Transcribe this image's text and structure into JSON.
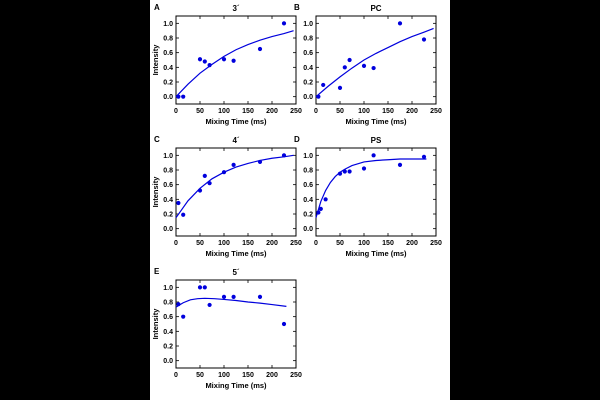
{
  "colors": {
    "series": "#0000dd",
    "axis": "#000000",
    "page_background": "#000000",
    "figure_background": "#ffffff"
  },
  "chart_data": [
    {
      "type": "scatter",
      "panel": "A",
      "title": "3´",
      "xlabel": "Mixing Time (ms)",
      "ylabel": "Intensity",
      "xlim": [
        0,
        250
      ],
      "ylim": [
        -0.1,
        1.1
      ],
      "xticks": [
        0,
        50,
        100,
        150,
        200,
        250
      ],
      "yticks": [
        0.0,
        0.2,
        0.4,
        0.6,
        0.8,
        1.0
      ],
      "points": {
        "x": [
          5,
          15,
          50,
          60,
          70,
          100,
          120,
          175,
          225
        ],
        "y": [
          0.0,
          0.0,
          0.51,
          0.48,
          0.43,
          0.51,
          0.49,
          0.65,
          1.0
        ]
      },
      "fit": {
        "x": [
          0,
          25,
          50,
          75,
          100,
          125,
          150,
          175,
          200,
          225,
          245
        ],
        "y": [
          0.0,
          0.17,
          0.32,
          0.44,
          0.55,
          0.64,
          0.71,
          0.77,
          0.82,
          0.86,
          0.9
        ]
      },
      "grid": false
    },
    {
      "type": "scatter",
      "panel": "B",
      "title": "PC",
      "xlabel": "Mixing Time (ms)",
      "ylabel": "",
      "xlim": [
        0,
        250
      ],
      "ylim": [
        -0.1,
        1.1
      ],
      "xticks": [
        0,
        50,
        100,
        150,
        200,
        250
      ],
      "yticks": [
        0.0,
        0.2,
        0.4,
        0.6,
        0.8,
        1.0
      ],
      "points": {
        "x": [
          5,
          15,
          50,
          60,
          70,
          100,
          120,
          175,
          225
        ],
        "y": [
          0.0,
          0.16,
          0.12,
          0.4,
          0.5,
          0.42,
          0.39,
          1.0,
          0.78
        ]
      },
      "fit": {
        "x": [
          0,
          25,
          50,
          75,
          100,
          125,
          150,
          175,
          200,
          225,
          245
        ],
        "y": [
          0.0,
          0.14,
          0.27,
          0.39,
          0.5,
          0.59,
          0.67,
          0.75,
          0.82,
          0.88,
          0.93
        ]
      },
      "grid": false
    },
    {
      "type": "scatter",
      "panel": "C",
      "title": "4´",
      "xlabel": "Mixing Time (ms)",
      "ylabel": "Intensity",
      "xlim": [
        0,
        250
      ],
      "ylim": [
        -0.1,
        1.1
      ],
      "xticks": [
        0,
        50,
        100,
        150,
        200,
        250
      ],
      "yticks": [
        0.0,
        0.2,
        0.4,
        0.6,
        0.8,
        1.0
      ],
      "points": {
        "x": [
          5,
          15,
          50,
          60,
          70,
          100,
          120,
          175,
          225
        ],
        "y": [
          0.35,
          0.19,
          0.52,
          0.72,
          0.62,
          0.77,
          0.87,
          0.91,
          1.0
        ]
      },
      "fit": {
        "x": [
          0,
          25,
          50,
          75,
          100,
          125,
          150,
          175,
          200,
          225,
          245
        ],
        "y": [
          0.15,
          0.38,
          0.55,
          0.68,
          0.77,
          0.84,
          0.89,
          0.93,
          0.96,
          0.98,
          1.0
        ]
      },
      "grid": false
    },
    {
      "type": "scatter",
      "panel": "D",
      "title": "PS",
      "xlabel": "Mixing Time (ms)",
      "ylabel": "",
      "xlim": [
        0,
        250
      ],
      "ylim": [
        -0.1,
        1.1
      ],
      "xticks": [
        0,
        50,
        100,
        150,
        200,
        250
      ],
      "yticks": [
        0.0,
        0.2,
        0.4,
        0.6,
        0.8,
        1.0
      ],
      "points": {
        "x": [
          5,
          10,
          20,
          50,
          60,
          70,
          100,
          120,
          175,
          225
        ],
        "y": [
          0.22,
          0.27,
          0.4,
          0.75,
          0.78,
          0.78,
          0.82,
          1.0,
          0.87,
          0.98
        ]
      },
      "fit": {
        "x": [
          0,
          10,
          20,
          30,
          40,
          50,
          60,
          75,
          100,
          125,
          150,
          175,
          200,
          230
        ],
        "y": [
          0.15,
          0.37,
          0.52,
          0.63,
          0.71,
          0.77,
          0.81,
          0.86,
          0.91,
          0.93,
          0.94,
          0.95,
          0.95,
          0.95
        ]
      },
      "grid": false
    },
    {
      "type": "scatter",
      "panel": "E",
      "title": "5´",
      "xlabel": "Mixing Time (ms)",
      "ylabel": "Intensity",
      "xlim": [
        0,
        250
      ],
      "ylim": [
        -0.1,
        1.1
      ],
      "xticks": [
        0,
        50,
        100,
        150,
        200,
        250
      ],
      "yticks": [
        0.0,
        0.2,
        0.4,
        0.6,
        0.8,
        1.0
      ],
      "points": {
        "x": [
          5,
          15,
          50,
          60,
          70,
          100,
          120,
          175,
          225
        ],
        "y": [
          0.77,
          0.6,
          1.0,
          1.0,
          0.76,
          0.87,
          0.87,
          0.87,
          0.5
        ]
      },
      "fit": {
        "x": [
          0,
          15,
          30,
          45,
          60,
          80,
          100,
          125,
          150,
          175,
          200,
          230
        ],
        "y": [
          0.73,
          0.79,
          0.83,
          0.845,
          0.85,
          0.845,
          0.835,
          0.82,
          0.8,
          0.785,
          0.765,
          0.74
        ]
      },
      "grid": false
    }
  ]
}
